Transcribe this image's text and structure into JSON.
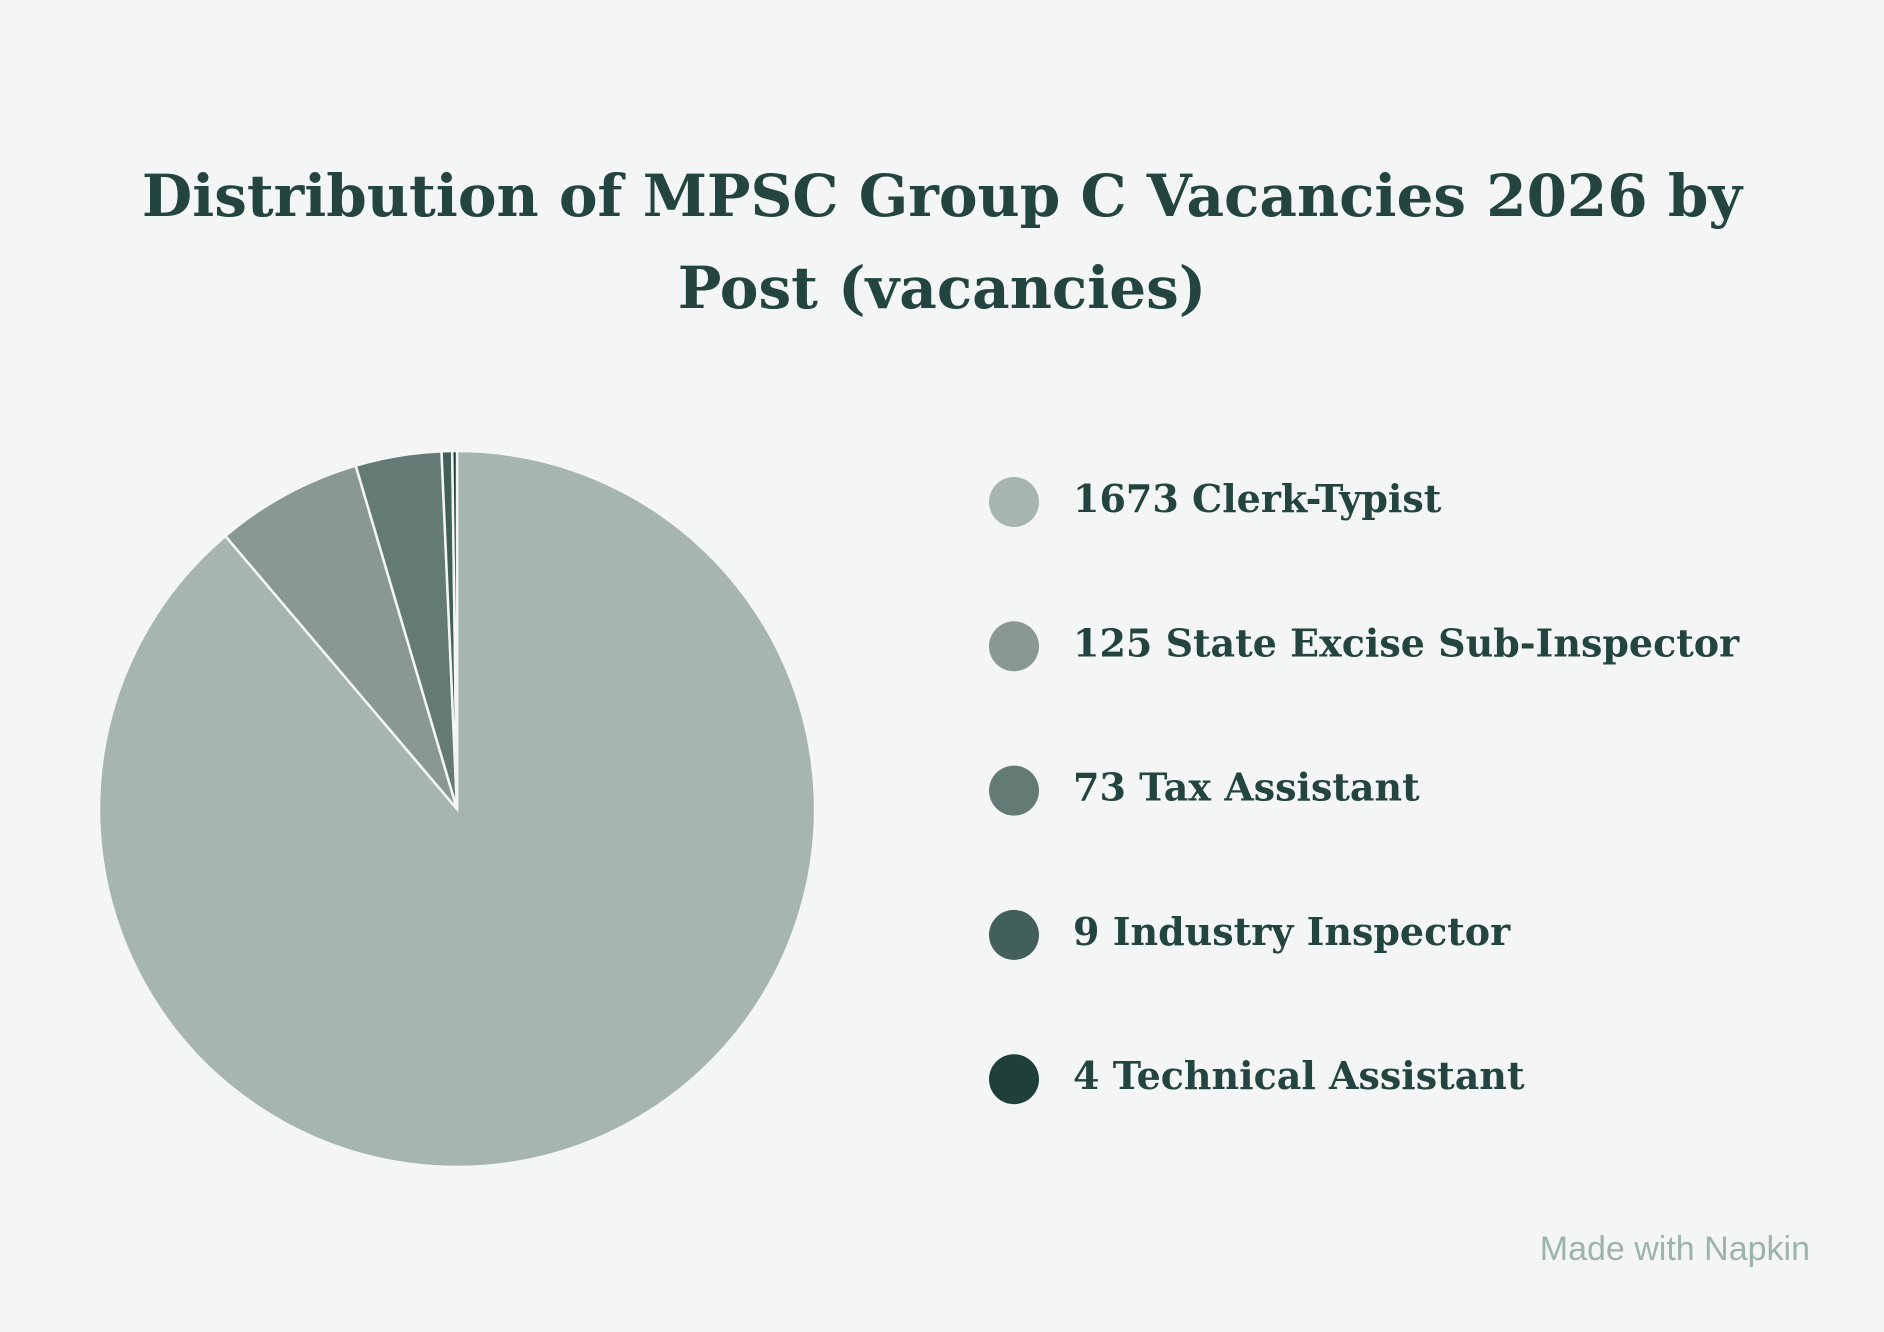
{
  "chart_data": {
    "type": "pie",
    "title": "Distribution of MPSC Group C Vacancies 2026 by Post (vacancies)",
    "categories": [
      "Clerk-Typist",
      "State Excise Sub-Inspector",
      "Tax Assistant",
      "Industry Inspector",
      "Technical Assistant"
    ],
    "values": [
      1673,
      125,
      73,
      9,
      4
    ],
    "colors": [
      "#a7b5b1",
      "#899893",
      "#647a74",
      "#435f59",
      "#1f3f3a"
    ],
    "legend": "right",
    "footer": "Made with Napkin"
  }
}
